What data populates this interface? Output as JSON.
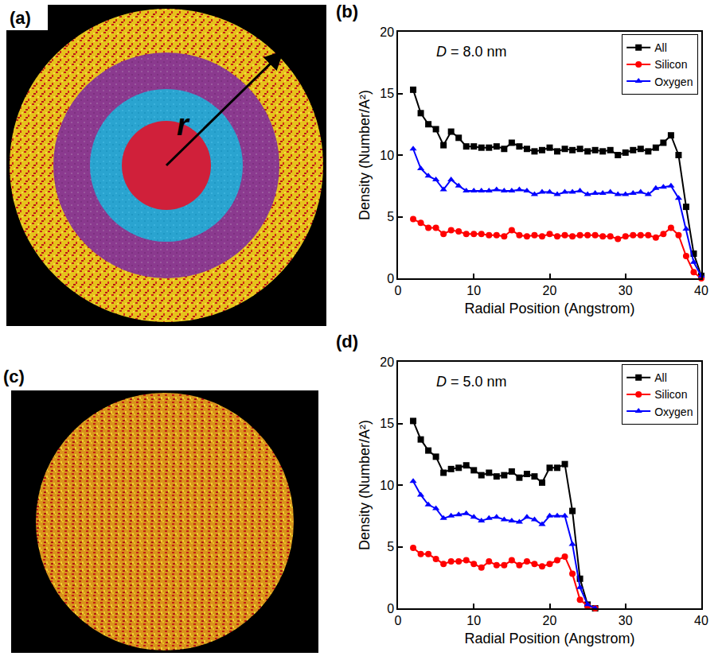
{
  "chart_data": [
    {
      "label": "(b)",
      "type": "line",
      "annotation": "D = 8.0 nm",
      "x_label": "Radial Position (Angstrom)",
      "y_label": "Density (Number/A²)",
      "x": [
        2,
        3,
        4,
        5,
        6,
        7,
        8,
        9,
        10,
        11,
        12,
        13,
        14,
        15,
        16,
        17,
        18,
        19,
        20,
        21,
        22,
        23,
        24,
        25,
        26,
        27,
        28,
        29,
        30,
        31,
        32,
        33,
        34,
        35,
        36,
        37,
        38,
        39,
        40
      ],
      "series": [
        {
          "name": "All",
          "color": "#000000",
          "marker": "square",
          "values": [
            15.3,
            13.4,
            12.5,
            12.1,
            10.8,
            11.9,
            11.4,
            10.7,
            10.7,
            10.6,
            10.6,
            10.7,
            10.5,
            11.0,
            10.7,
            10.5,
            10.3,
            10.4,
            10.6,
            10.3,
            10.5,
            10.4,
            10.5,
            10.3,
            10.4,
            10.3,
            10.4,
            10.0,
            10.2,
            10.4,
            10.5,
            10.3,
            10.6,
            11.0,
            11.6,
            10.0,
            5.8,
            2.0,
            0.2
          ]
        },
        {
          "name": "Silicon",
          "color": "#ff0000",
          "marker": "circle",
          "values": [
            4.8,
            4.5,
            4.1,
            4.1,
            3.6,
            3.9,
            3.8,
            3.6,
            3.6,
            3.6,
            3.5,
            3.5,
            3.4,
            3.9,
            3.5,
            3.4,
            3.5,
            3.4,
            3.6,
            3.4,
            3.5,
            3.4,
            3.5,
            3.5,
            3.5,
            3.4,
            3.4,
            3.2,
            3.4,
            3.5,
            3.5,
            3.5,
            3.3,
            3.6,
            4.1,
            3.5,
            1.8,
            0.5,
            0.0
          ]
        },
        {
          "name": "Oxygen",
          "color": "#0000ff",
          "marker": "triangle-up",
          "values": [
            10.5,
            8.9,
            8.3,
            8.0,
            7.2,
            8.0,
            7.5,
            7.1,
            7.1,
            7.1,
            7.1,
            7.2,
            7.1,
            7.1,
            7.2,
            7.1,
            6.8,
            7.0,
            7.0,
            6.8,
            7.0,
            7.0,
            7.1,
            6.8,
            6.9,
            6.9,
            7.0,
            6.8,
            6.8,
            6.9,
            7.0,
            6.8,
            7.3,
            7.4,
            7.5,
            6.5,
            4.0,
            1.3,
            0.2
          ]
        }
      ],
      "xlim": [
        0,
        40
      ],
      "xticks": [
        0,
        10,
        20,
        30,
        40
      ],
      "ylim": [
        0,
        20
      ],
      "yticks": [
        0,
        5,
        10,
        15,
        20
      ],
      "legend": "top right",
      "grid": false
    },
    {
      "label": "(d)",
      "type": "line",
      "annotation": "D = 5.0 nm",
      "x_label": "Radial Position (Angstrom)",
      "y_label": "Density (Number/A²)",
      "x": [
        2,
        3,
        4,
        5,
        6,
        7,
        8,
        9,
        10,
        11,
        12,
        13,
        14,
        15,
        16,
        17,
        18,
        19,
        20,
        21,
        22,
        23,
        24,
        25,
        26
      ],
      "series": [
        {
          "name": "All",
          "color": "#000000",
          "marker": "square",
          "values": [
            15.2,
            13.7,
            12.8,
            12.3,
            11.0,
            11.3,
            11.4,
            11.6,
            11.2,
            10.8,
            11.0,
            10.7,
            10.8,
            11.1,
            10.6,
            10.9,
            10.7,
            10.2,
            11.4,
            11.4,
            11.7,
            7.9,
            2.4,
            0.3,
            0.0
          ]
        },
        {
          "name": "Silicon",
          "color": "#ff0000",
          "marker": "circle",
          "values": [
            4.9,
            4.4,
            4.4,
            4.0,
            3.6,
            3.8,
            3.8,
            3.9,
            3.6,
            3.3,
            3.8,
            3.5,
            3.5,
            3.9,
            3.5,
            3.8,
            3.6,
            3.4,
            3.6,
            3.9,
            4.2,
            2.8,
            0.7,
            0.2,
            0.0
          ]
        },
        {
          "name": "Oxygen",
          "color": "#0000ff",
          "marker": "triangle-up",
          "values": [
            10.3,
            9.2,
            8.4,
            8.1,
            7.3,
            7.5,
            7.6,
            7.7,
            7.4,
            7.1,
            7.3,
            7.4,
            7.2,
            7.1,
            7.0,
            7.4,
            7.2,
            6.8,
            7.5,
            7.5,
            7.5,
            5.2,
            1.7,
            0.3,
            0.0
          ]
        }
      ],
      "xlim": [
        0,
        40
      ],
      "xticks": [
        0,
        10,
        20,
        30,
        40
      ],
      "ylim": [
        0,
        20
      ],
      "yticks": [
        0,
        5,
        10,
        15,
        20
      ],
      "legend": "top right",
      "grid": false
    }
  ],
  "images": [
    {
      "label": "(a)",
      "annotation": "r"
    },
    {
      "label": "(c)"
    }
  ]
}
